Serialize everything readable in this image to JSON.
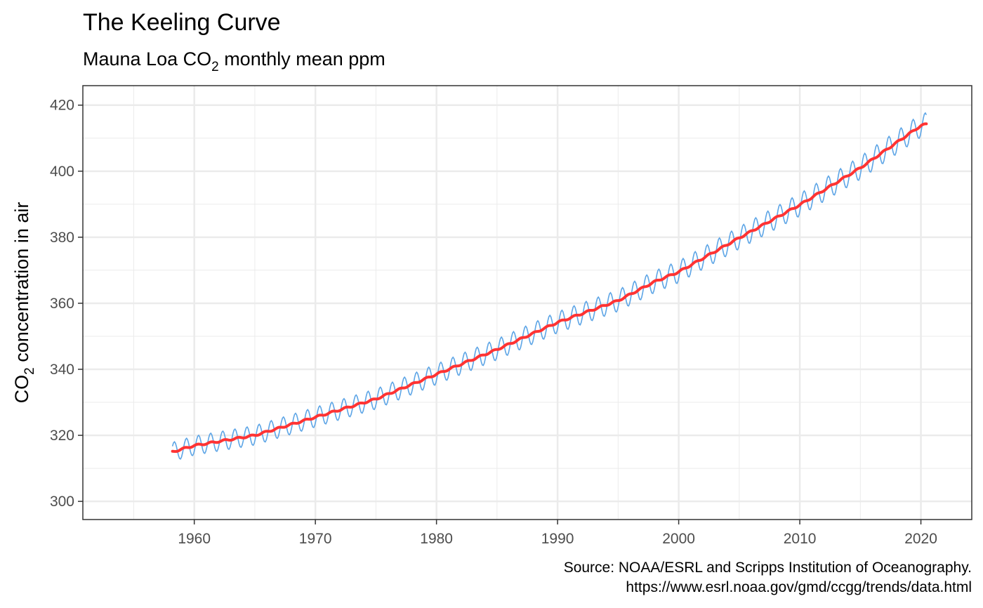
{
  "chart_data": {
    "type": "line",
    "title": "The Keeling Curve",
    "subtitle": {
      "prefix": "Mauna Loa CO",
      "sub": "2",
      "suffix": " monthly mean ppm"
    },
    "ylabel": {
      "prefix": "CO",
      "sub": "2",
      "suffix": " concentration in air"
    },
    "xlabel": "",
    "xlim": [
      1950.8,
      2024.2
    ],
    "ylim": [
      294.5,
      425.9
    ],
    "x_ticks": [
      1960,
      1970,
      1980,
      1990,
      2000,
      2010,
      2020
    ],
    "y_ticks": [
      300,
      320,
      340,
      360,
      380,
      400,
      420
    ],
    "x_tick_labels": [
      "1960",
      "1970",
      "1980",
      "1990",
      "2000",
      "2010",
      "2020"
    ],
    "y_tick_labels": [
      "300",
      "320",
      "340",
      "360",
      "380",
      "400",
      "420"
    ],
    "grid": true,
    "theme": "bw",
    "colors": {
      "monthly": "#5DA5E6",
      "trend": "#FF3333",
      "grid": "#EBEBEB",
      "border": "#333333"
    },
    "series": [
      {
        "key": "monthly_mean",
        "x_start": 1958.2,
        "x_end": 2020.45,
        "seasonal_amplitude": 3.2,
        "x": [
          1958.2,
          1960,
          1965,
          1970,
          1975,
          1980,
          1985,
          1990,
          1995,
          1998,
          2000,
          2005,
          2010,
          2015,
          2020,
          2020.45
        ],
        "y": [
          315.0,
          316.9,
          320.0,
          325.5,
          331.0,
          338.5,
          346.0,
          354.2,
          360.8,
          366.5,
          369.5,
          379.8,
          389.8,
          401.0,
          413.8,
          414.2
        ]
      },
      {
        "key": "trend",
        "x": [
          1958.2,
          1960,
          1965,
          1970,
          1975,
          1980,
          1985,
          1990,
          1995,
          1998,
          2000,
          2005,
          2010,
          2015,
          2020,
          2020.45
        ],
        "y": [
          315.0,
          316.9,
          320.0,
          325.5,
          331.0,
          338.5,
          346.0,
          354.2,
          360.8,
          366.5,
          369.5,
          379.8,
          389.8,
          401.0,
          413.8,
          414.2
        ]
      }
    ]
  },
  "caption": {
    "line1": "Source: NOAA/ESRL and Scripps Institution of Oceanography.",
    "line2": "https://www.esrl.noaa.gov/gmd/ccgg/trends/data.html"
  }
}
